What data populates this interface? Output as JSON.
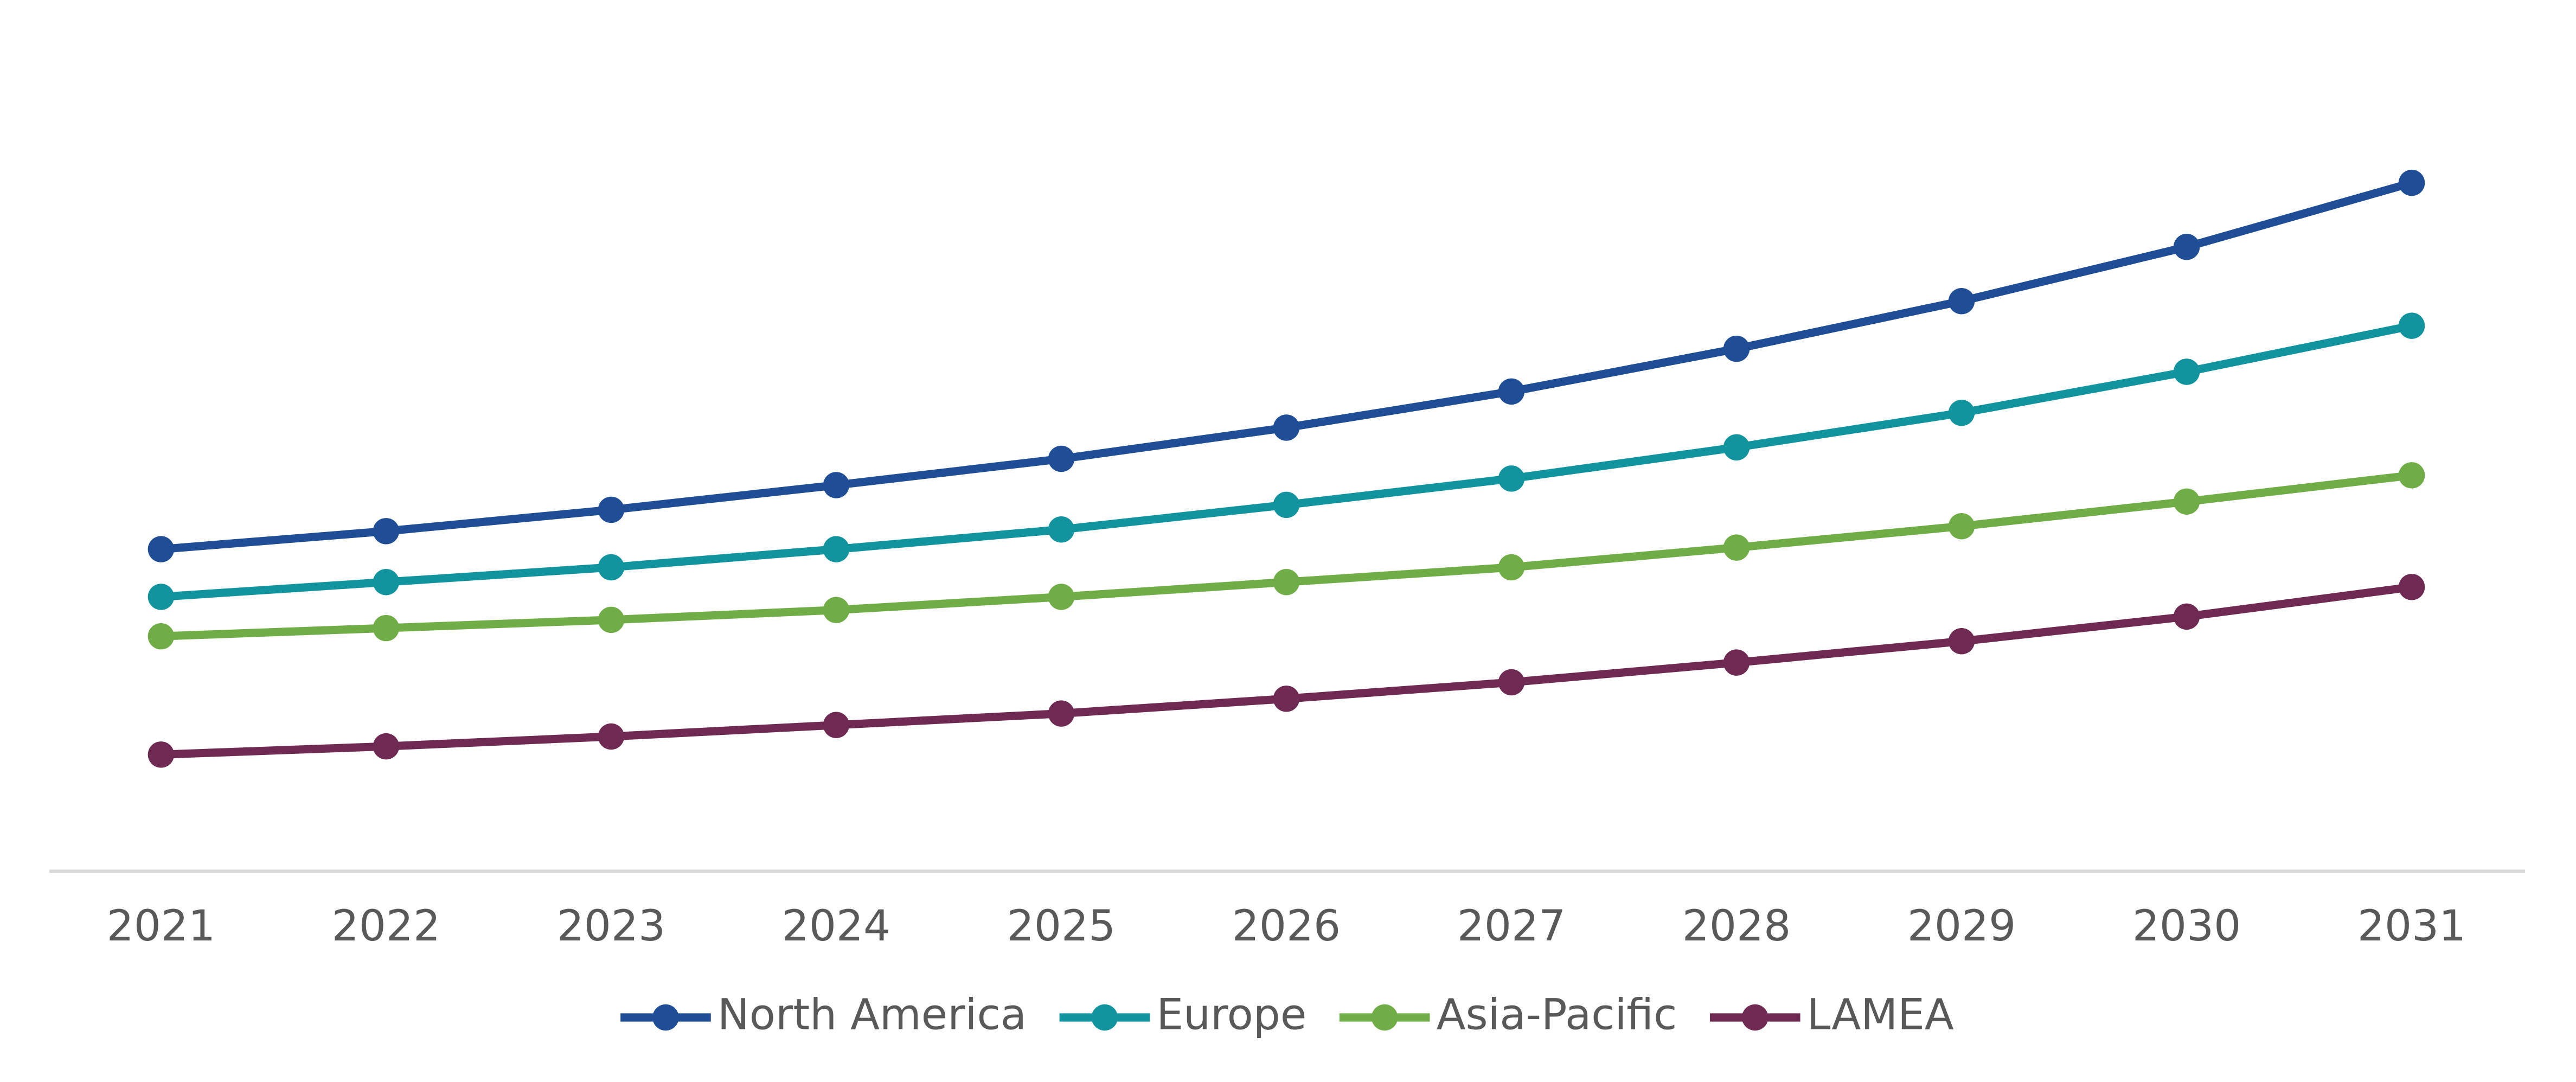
{
  "chart_data": {
    "type": "line",
    "categories": [
      "2021",
      "2022",
      "2023",
      "2024",
      "2025",
      "2026",
      "2027",
      "2028",
      "2029",
      "2030",
      "2031"
    ],
    "ylim": [
      0,
      450
    ],
    "legend": "bottom",
    "series": [
      {
        "name": "North America",
        "color": "#1f4e96",
        "values": [
          196,
          207,
          220,
          235,
          251,
          270,
          292,
          318,
          347,
          380,
          419
        ]
      },
      {
        "name": "Europe",
        "color": "#12949e",
        "values": [
          167,
          176,
          185,
          196,
          208,
          223,
          239,
          258,
          279,
          304,
          332
        ]
      },
      {
        "name": "Asia-Pacific",
        "color": "#70ad47",
        "values": [
          143,
          148,
          153,
          159,
          167,
          176,
          185,
          197,
          210,
          225,
          241
        ]
      },
      {
        "name": "LAMEA",
        "color": "#6e2a52",
        "values": [
          71,
          76,
          82,
          89,
          96,
          105,
          115,
          127,
          140,
          155,
          173
        ]
      }
    ]
  }
}
